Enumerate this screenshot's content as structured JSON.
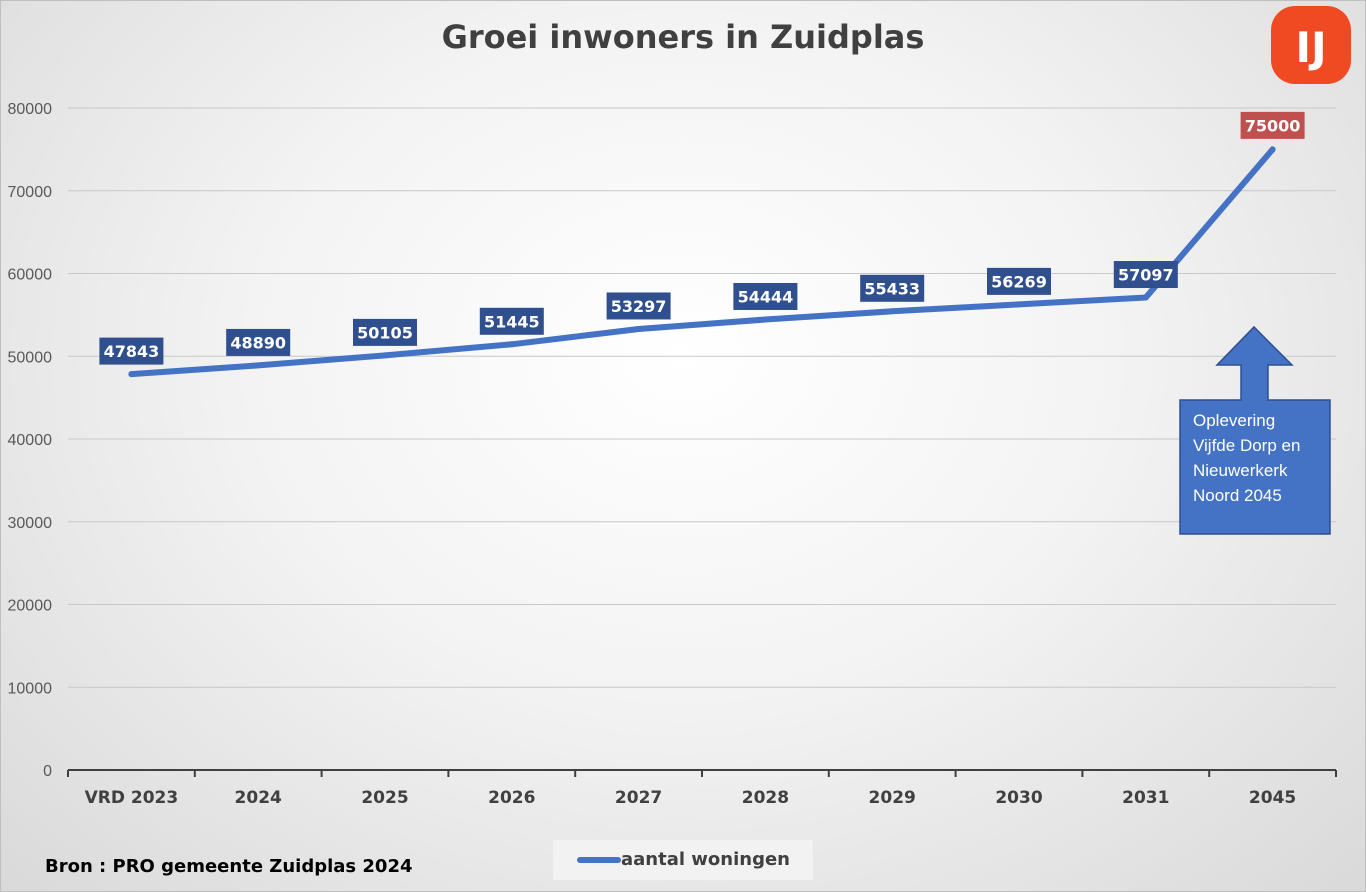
{
  "chart_data": {
    "type": "line",
    "title": "Groei inwoners in Zuidplas",
    "categories": [
      "VRD 2023",
      "2024",
      "2025",
      "2026",
      "2027",
      "2028",
      "2029",
      "2030",
      "2031",
      "2045"
    ],
    "series": [
      {
        "name": "aantal woningen",
        "values": [
          47843,
          48890,
          50105,
          51445,
          53297,
          54444,
          55433,
          56269,
          57097,
          75000
        ],
        "color": "#4472C4"
      }
    ],
    "data_labels": [
      "47843",
      "48890",
      "50105",
      "51445",
      "53297",
      "54444",
      "55433",
      "56269",
      "57097",
      "75000"
    ],
    "label_colors": {
      "default": "#2F4F8F",
      "highlight": "#C0504D"
    },
    "ylim": [
      0,
      80000
    ],
    "yticks": [
      0,
      10000,
      20000,
      30000,
      40000,
      50000,
      60000,
      70000,
      80000
    ],
    "grid": true,
    "legend": "bottom-center",
    "annotation": "Oplevering Vijfde Dorp en Nieuwerkerk Noord 2045",
    "annotation_lines": [
      "Oplevering",
      "Vijfde Dorp en",
      "Nieuwerkerk",
      "Noord 2045"
    ],
    "source": "Bron : PRO gemeente Zuidplas 2024"
  },
  "logo": {
    "text": "IJ",
    "icon": "brand-logo-icon",
    "color": "#F04A23"
  }
}
